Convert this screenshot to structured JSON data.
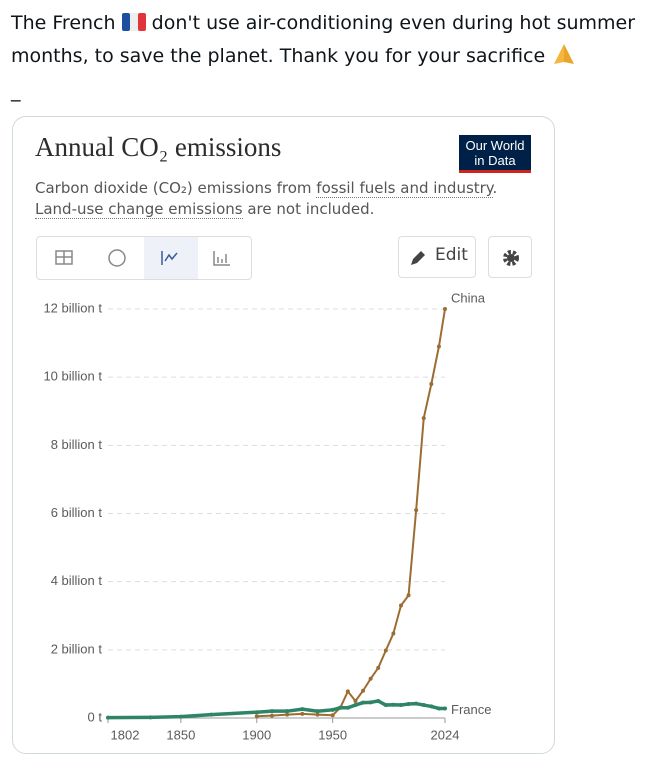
{
  "post": {
    "line1_start": "The French",
    "line1_end": "don't use air-conditioning even during hot summer",
    "line2": "months, to save the planet. Thank you for your sacrifice",
    "line3": "_"
  },
  "card": {
    "subtitle_1a": "Carbon dioxide (CO₂) emissions from ",
    "subtitle_1b": "fossil fuels and industry",
    "subtitle_1c": ".",
    "subtitle_2a": "Land-use change emissions",
    "subtitle_2b": " are not included.",
    "logo_1": "Our World",
    "logo_2": "in Data",
    "edit_button": "Edit"
  },
  "chart_data": {
    "type": "line",
    "title": "Annual CO₂ emissions",
    "x": [
      1802,
      1830,
      1850,
      1870,
      1900,
      1910,
      1920,
      1930,
      1940,
      1950,
      1955,
      1960,
      1965,
      1970,
      1975,
      1980,
      1985,
      1990,
      1995,
      2000,
      2005,
      2010,
      2015,
      2020,
      2024
    ],
    "series": [
      {
        "name": "China",
        "color": "#9c6d33",
        "values": [
          null,
          null,
          null,
          null,
          0.05,
          0.07,
          0.1,
          0.12,
          0.1,
          0.08,
          0.3,
          0.78,
          0.5,
          0.8,
          1.15,
          1.47,
          1.98,
          2.48,
          3.3,
          3.6,
          6.1,
          8.8,
          9.8,
          10.9,
          12.0
        ]
      },
      {
        "name": "France",
        "color": "#2e8467",
        "values": [
          0.01,
          0.02,
          0.04,
          0.1,
          0.17,
          0.2,
          0.2,
          0.26,
          0.2,
          0.24,
          0.3,
          0.3,
          0.38,
          0.45,
          0.46,
          0.5,
          0.38,
          0.39,
          0.38,
          0.41,
          0.42,
          0.38,
          0.34,
          0.28,
          0.28
        ]
      }
    ],
    "xlim": [
      1802,
      2024
    ],
    "xticks": [
      1802,
      1850,
      1900,
      1950,
      2024
    ],
    "ylim": [
      0,
      12
    ],
    "yticks": [
      {
        "value": 0,
        "label": "0 t"
      },
      {
        "value": 2,
        "label": "2 billion t"
      },
      {
        "value": 4,
        "label": "4 billion t"
      },
      {
        "value": 6,
        "label": "6 billion t"
      },
      {
        "value": 8,
        "label": "8 billion t"
      },
      {
        "value": 10,
        "label": "10 billion t"
      },
      {
        "value": 12,
        "label": "12 billion t"
      }
    ],
    "grid": true
  }
}
